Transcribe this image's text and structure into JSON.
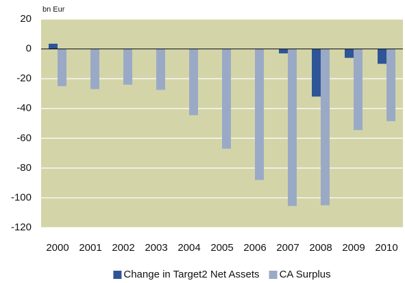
{
  "chart_data": {
    "type": "bar",
    "unit_label": "bn Eur",
    "categories": [
      "2000",
      "2001",
      "2002",
      "2003",
      "2004",
      "2005",
      "2006",
      "2007",
      "2008",
      "2009",
      "2010"
    ],
    "series": [
      {
        "name": "Change in Target2 Net Assets",
        "color": "#2e5597",
        "values": [
          3.5,
          0,
          0,
          0,
          0,
          0,
          0,
          -3,
          -32,
          -6,
          -10
        ]
      },
      {
        "name": "CA Surplus",
        "color": "#9aaac6",
        "values": [
          -25,
          -27,
          -24,
          -27.5,
          -44.5,
          -67,
          -88,
          -105.5,
          -105,
          -54.5,
          -48.5
        ]
      }
    ],
    "ylim": [
      -120,
      20
    ],
    "yticks": [
      -120,
      -100,
      -80,
      -60,
      -40,
      -20,
      0,
      20
    ],
    "grid": true,
    "plot_background": "#d3d5a9"
  }
}
